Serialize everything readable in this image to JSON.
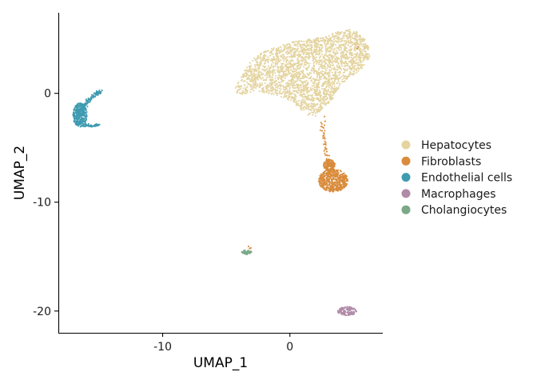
{
  "chart_data": {
    "type": "scatter",
    "title": "",
    "xlabel": "UMAP_1",
    "ylabel": "UMAP_2",
    "xlim": [
      -18.2,
      7.3
    ],
    "ylim": [
      -22.0,
      7.4
    ],
    "x_ticks": [
      -10,
      0
    ],
    "x_tick_labels": [
      "-10",
      "0"
    ],
    "y_ticks": [
      0,
      -10,
      -20
    ],
    "y_tick_labels": [
      "0",
      "-10",
      "-20"
    ],
    "grid": false,
    "legend_position": "right",
    "series": [
      {
        "name": "Hepatocytes",
        "color": "#E4D4A0",
        "clusters": [
          {
            "shape": "poly",
            "n": 2600,
            "poly": [
              [
                -4.3,
                0.5
              ],
              [
                -3.6,
                2.0
              ],
              [
                -3.0,
                3.1
              ],
              [
                -2.1,
                3.8
              ],
              [
                -1.0,
                4.3
              ],
              [
                0.4,
                4.8
              ],
              [
                1.6,
                5.0
              ],
              [
                2.8,
                5.2
              ],
              [
                3.8,
                5.7
              ],
              [
                4.6,
                5.9
              ],
              [
                5.4,
                5.6
              ],
              [
                6.1,
                4.7
              ],
              [
                6.3,
                3.4
              ],
              [
                5.7,
                2.3
              ],
              [
                4.9,
                1.5
              ],
              [
                4.0,
                0.9
              ],
              [
                3.4,
                -0.5
              ],
              [
                2.6,
                -1.5
              ],
              [
                2.0,
                -2.1
              ],
              [
                1.3,
                -2.0
              ],
              [
                0.6,
                -1.2
              ],
              [
                -0.3,
                -0.5
              ],
              [
                -1.5,
                -0.1
              ],
              [
                -2.7,
                0.2
              ],
              [
                -3.7,
                -0.1
              ],
              [
                -4.2,
                0.0
              ]
            ]
          }
        ]
      },
      {
        "name": "Fibroblasts",
        "color": "#D98C3C",
        "clusters": [
          {
            "shape": "ellipse",
            "n": 480,
            "cx": 3.4,
            "cy": -8.0,
            "rx": 1.15,
            "ry": 1.05
          },
          {
            "shape": "ellipse",
            "n": 160,
            "cx": 3.1,
            "cy": -6.6,
            "rx": 0.45,
            "ry": 0.55
          },
          {
            "shape": "line",
            "n": 40,
            "points": [
              [
                2.7,
                -2.0
              ],
              [
                2.6,
                -3.5
              ],
              [
                2.8,
                -5.0
              ],
              [
                3.0,
                -6.0
              ]
            ],
            "spread": 0.18
          },
          {
            "shape": "ellipse",
            "n": 4,
            "cx": -3.2,
            "cy": -14.2,
            "rx": 0.2,
            "ry": 0.15
          },
          {
            "shape": "ellipse",
            "n": 2,
            "cx": 5.3,
            "cy": 4.2,
            "rx": 0.1,
            "ry": 0.1
          }
        ]
      },
      {
        "name": "Endothelial cells",
        "color": "#3E9BB0",
        "clusters": [
          {
            "shape": "ellipse",
            "n": 320,
            "cx": -16.5,
            "cy": -2.0,
            "rx": 0.55,
            "ry": 1.1
          },
          {
            "shape": "line",
            "n": 90,
            "points": [
              [
                -16.2,
                -1.2
              ],
              [
                -15.8,
                -0.6
              ],
              [
                -15.3,
                -0.1
              ],
              [
                -14.8,
                0.2
              ]
            ],
            "spread": 0.15
          },
          {
            "shape": "line",
            "n": 60,
            "points": [
              [
                -16.3,
                -2.9
              ],
              [
                -15.6,
                -3.0
              ],
              [
                -15.0,
                -2.9
              ]
            ],
            "spread": 0.12
          }
        ]
      },
      {
        "name": "Macrophages",
        "color": "#B08BA8",
        "clusters": [
          {
            "shape": "ellipse",
            "n": 110,
            "cx": 4.5,
            "cy": -20.0,
            "rx": 0.75,
            "ry": 0.4
          }
        ]
      },
      {
        "name": "Cholangiocytes",
        "color": "#7BA887",
        "clusters": [
          {
            "shape": "ellipse",
            "n": 45,
            "cx": -3.4,
            "cy": -14.6,
            "rx": 0.4,
            "ry": 0.2
          }
        ]
      }
    ]
  }
}
